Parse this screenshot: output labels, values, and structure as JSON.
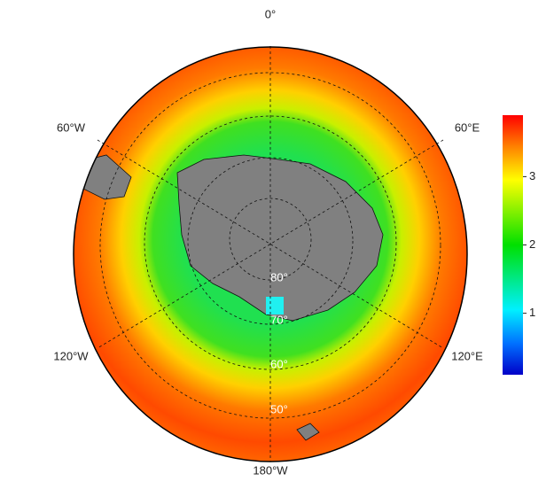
{
  "map": {
    "longitude_labels": [
      "0°",
      "60°E",
      "120°E",
      "180°W",
      "120°W",
      "60°W"
    ],
    "latitude_labels": [
      "80°",
      "70°",
      "60°",
      "50°"
    ]
  },
  "colorbar": {
    "lim": [
      0.1,
      3.9
    ],
    "ticks": [
      1,
      2,
      3
    ]
  }
}
